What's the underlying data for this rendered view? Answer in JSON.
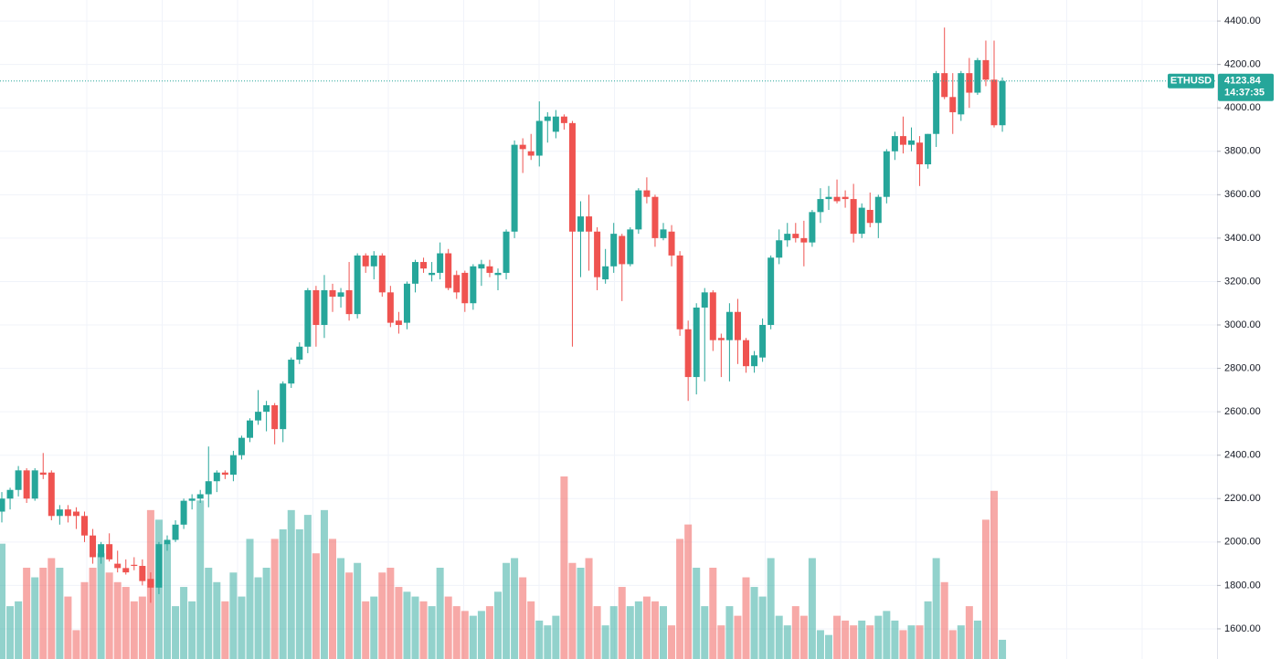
{
  "chart_data": {
    "type": "candlestick",
    "symbol": "ETHUSD",
    "last_price": 4123.84,
    "countdown": "14:37:35",
    "up_color": "#26a69a",
    "down_color": "#ef5350",
    "grid": true,
    "ylim": [
      1461,
      4497
    ],
    "yticks": [
      {
        "value": 1600,
        "label": "1600.00"
      },
      {
        "value": 1800,
        "label": "1800.00"
      },
      {
        "value": 2000,
        "label": "2000.00"
      },
      {
        "value": 2200,
        "label": "2200.00"
      },
      {
        "value": 2400,
        "label": "2400.00"
      },
      {
        "value": 2600,
        "label": "2600.00"
      },
      {
        "value": 2800,
        "label": "2800.00"
      },
      {
        "value": 3000,
        "label": "3000.00"
      },
      {
        "value": 3200,
        "label": "3200.00"
      },
      {
        "value": 3400,
        "label": "3400.00"
      },
      {
        "value": 3600,
        "label": "3600.00"
      },
      {
        "value": 3800,
        "label": "3800.00"
      },
      {
        "value": 4000,
        "label": "4000.00"
      },
      {
        "value": 4200,
        "label": "4200.00"
      },
      {
        "value": 4400,
        "label": "4400.00"
      }
    ],
    "open": [
      2140,
      2200,
      2240,
      2330,
      2200,
      2320,
      2320,
      2120,
      2150,
      2140,
      2120,
      2030,
      1930,
      1990,
      1900,
      1880,
      1895,
      1890,
      1830,
      1790,
      1990,
      2010,
      2080,
      2190,
      2200,
      2220,
      2280,
      2320,
      2310,
      2400,
      2480,
      2560,
      2600,
      2630,
      2520,
      2730,
      2840,
      2900,
      3160,
      3000,
      3160,
      3130,
      3160,
      3050,
      3320,
      3270,
      3320,
      3150,
      3020,
      3010,
      3190,
      3290,
      3230,
      3240,
      3330,
      3230,
      3240,
      3100,
      3260,
      3270,
      3230,
      3240,
      3430,
      3830,
      3800,
      3780,
      3940,
      3890,
      3960,
      3930,
      3430,
      3500,
      3430,
      3210,
      3270,
      3410,
      3280,
      3440,
      3620,
      3590,
      3400,
      3430,
      3320,
      2980,
      2760,
      3080,
      3150,
      2940,
      2930,
      3060,
      2930,
      2810,
      2850,
      3000,
      3310,
      3390,
      3420,
      3400,
      3380,
      3520,
      3580,
      3590,
      3590,
      3580,
      3420,
      3530,
      3470,
      3590,
      3800,
      3870,
      3830,
      3840,
      3740,
      3880,
      4160,
      4050,
      3970,
      4160,
      4070,
      4220,
      4130,
      3920
    ],
    "high": [
      2230,
      2250,
      2350,
      2340,
      2340,
      2410,
      2330,
      2170,
      2170,
      2160,
      2140,
      2060,
      2000,
      2040,
      1960,
      1920,
      1930,
      1920,
      1860,
      2000,
      2030,
      2100,
      2200,
      2220,
      2240,
      2440,
      2330,
      2330,
      2420,
      2490,
      2570,
      2700,
      2650,
      2640,
      2740,
      2850,
      2920,
      3170,
      3180,
      3230,
      3190,
      3170,
      3290,
      3330,
      3330,
      3340,
      3330,
      3180,
      3060,
      3200,
      3300,
      3310,
      3290,
      3380,
      3350,
      3250,
      3250,
      3280,
      3300,
      3300,
      3260,
      3440,
      3850,
      3860,
      3880,
      4030,
      3980,
      3990,
      3970,
      3940,
      3570,
      3600,
      3450,
      3350,
      3470,
      3420,
      3450,
      3630,
      3680,
      3600,
      3470,
      3460,
      3340,
      3020,
      3100,
      3170,
      3160,
      2960,
      3100,
      3120,
      2940,
      2880,
      3030,
      3320,
      3440,
      3470,
      3470,
      3480,
      3530,
      3630,
      3640,
      3670,
      3620,
      3650,
      3560,
      3610,
      3600,
      3810,
      3890,
      3960,
      3910,
      3870,
      3880,
      4170,
      4370,
      4160,
      4170,
      4230,
      4230,
      4310,
      4310,
      4140
    ],
    "low": [
      2090,
      2150,
      2210,
      2180,
      2190,
      2290,
      2100,
      2080,
      2090,
      2060,
      2000,
      1900,
      1900,
      1910,
      1860,
      1850,
      1870,
      1800,
      1720,
      1760,
      1960,
      2000,
      2060,
      2150,
      2180,
      2160,
      2230,
      2290,
      2280,
      2380,
      2460,
      2540,
      2510,
      2450,
      2460,
      2710,
      2820,
      2870,
      2900,
      2940,
      3060,
      3080,
      3020,
      3030,
      3240,
      3210,
      3130,
      2990,
      2960,
      2980,
      3150,
      3240,
      3200,
      3210,
      3160,
      3120,
      3060,
      3070,
      3180,
      3220,
      3160,
      3210,
      3400,
      3700,
      3760,
      3730,
      3840,
      3860,
      3900,
      2900,
      3220,
      3250,
      3160,
      3190,
      3240,
      3110,
      3270,
      3420,
      3560,
      3360,
      3390,
      3270,
      2950,
      2650,
      2680,
      2740,
      2880,
      2760,
      2740,
      2820,
      2780,
      2780,
      2830,
      2980,
      3280,
      3360,
      3380,
      3270,
      3360,
      3470,
      3530,
      3560,
      3540,
      3380,
      3400,
      3450,
      3400,
      3560,
      3760,
      3790,
      3800,
      3640,
      3720,
      3820,
      4040,
      3880,
      3940,
      4000,
      4060,
      4100,
      3910,
      3890
    ],
    "close": [
      2200,
      2240,
      2330,
      2200,
      2330,
      2310,
      2120,
      2150,
      2120,
      2120,
      2030,
      1930,
      1990,
      1920,
      1880,
      1860,
      1890,
      1820,
      1790,
      1990,
      2010,
      2080,
      2190,
      2200,
      2220,
      2280,
      2320,
      2310,
      2400,
      2480,
      2560,
      2600,
      2630,
      2520,
      2730,
      2840,
      2900,
      3160,
      3000,
      3160,
      3130,
      3150,
      3050,
      3320,
      3270,
      3320,
      3150,
      3010,
      3000,
      3190,
      3290,
      3260,
      3240,
      3330,
      3170,
      3150,
      3100,
      3270,
      3280,
      3240,
      3240,
      3430,
      3830,
      3810,
      3780,
      3940,
      3960,
      3960,
      3930,
      3430,
      3500,
      3430,
      3220,
      3270,
      3420,
      3280,
      3440,
      3620,
      3590,
      3400,
      3440,
      3320,
      2980,
      2760,
      3080,
      3150,
      2930,
      2930,
      3060,
      2930,
      2810,
      2860,
      3000,
      3310,
      3390,
      3420,
      3400,
      3380,
      3520,
      3580,
      3590,
      3570,
      3580,
      3420,
      3540,
      3470,
      3590,
      3800,
      3870,
      3830,
      3850,
      3740,
      3880,
      4160,
      4050,
      3980,
      4160,
      4070,
      4220,
      4130,
      3920,
      4123.84
    ],
    "volume": [
      120,
      55,
      60,
      95,
      85,
      95,
      105,
      95,
      65,
      30,
      80,
      95,
      110,
      90,
      80,
      75,
      60,
      65,
      155,
      145,
      120,
      55,
      75,
      60,
      165,
      95,
      80,
      60,
      90,
      65,
      125,
      85,
      95,
      125,
      135,
      155,
      135,
      150,
      110,
      155,
      125,
      105,
      90,
      100,
      60,
      65,
      90,
      95,
      75,
      70,
      65,
      60,
      55,
      95,
      65,
      55,
      50,
      45,
      50,
      55,
      70,
      100,
      105,
      85,
      60,
      40,
      35,
      45,
      190,
      100,
      95,
      105,
      55,
      35,
      55,
      75,
      55,
      60,
      65,
      60,
      55,
      35,
      125,
      140,
      95,
      55,
      95,
      35,
      55,
      45,
      85,
      75,
      65,
      105,
      45,
      35,
      55,
      45,
      105,
      30,
      25,
      45,
      40,
      35,
      40,
      35,
      45,
      50,
      40,
      30,
      35,
      35,
      60,
      105,
      80,
      30,
      35,
      55,
      40,
      145,
      175,
      20
    ]
  }
}
